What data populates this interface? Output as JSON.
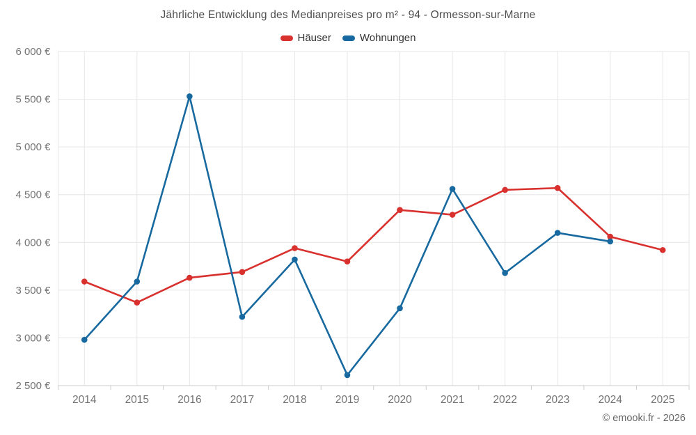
{
  "title": "Jährliche Entwicklung des Medianpreises pro m² - 94 - Ormesson-sur-Marne",
  "copyright": "© emooki.fr - 2026",
  "colors": {
    "hauser_red": "#d8312e",
    "wohnungen_blue": "#17699f",
    "grid_line": "#e6e6e6",
    "axis_line": "#cccccc",
    "axis_label": "#737373",
    "title_text": "#4d4d4d"
  },
  "chart_data": {
    "type": "line",
    "title": "Jährliche Entwicklung des Medianpreises pro m² - 94 - Ormesson-sur-Marne",
    "categories": [
      "2014",
      "2015",
      "2016",
      "2017",
      "2018",
      "2019",
      "2020",
      "2021",
      "2022",
      "2023",
      "2024",
      "2025"
    ],
    "series": [
      {
        "name": "Häuser",
        "color": "#d8312e",
        "values": [
          3590,
          3370,
          3630,
          3690,
          3940,
          3800,
          4340,
          4290,
          4550,
          4570,
          4060,
          3920
        ]
      },
      {
        "name": "Wohnungen",
        "color": "#17699f",
        "values": [
          2980,
          3590,
          5530,
          3220,
          3820,
          2610,
          3310,
          4560,
          3680,
          4100,
          4010,
          null
        ]
      }
    ],
    "xlabel": "",
    "ylabel": "",
    "ylim": [
      2500,
      6000
    ],
    "ytick_step": 500,
    "ytick_labels": [
      "2 500 €",
      "3 000 €",
      "3 500 €",
      "4 000 €",
      "4 500 €",
      "5 000 €",
      "5 500 €",
      "6 000 €"
    ],
    "grid": true,
    "legend_position": "top"
  }
}
